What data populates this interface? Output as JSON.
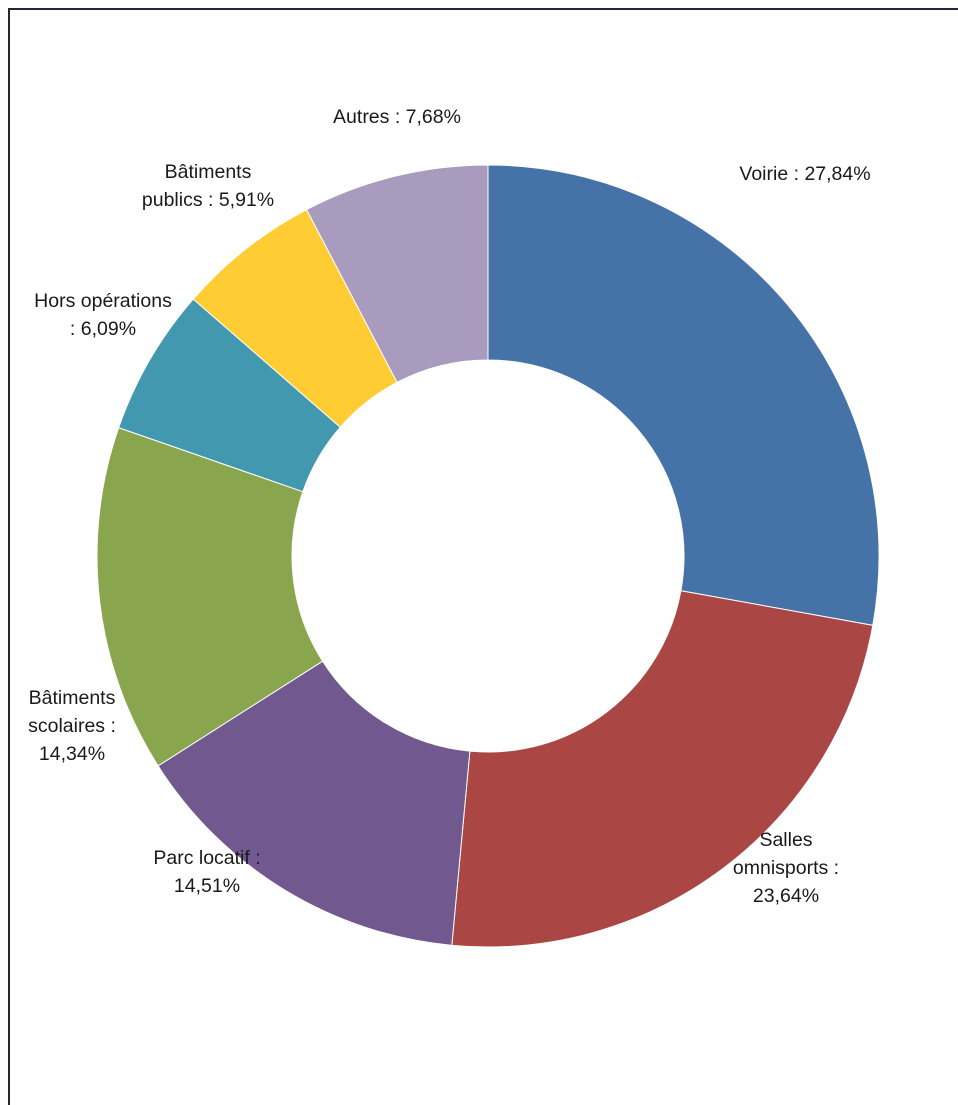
{
  "chart_data": {
    "type": "pie",
    "variant": "donut",
    "title": "",
    "slices": [
      {
        "label": "Voirie",
        "value": 27.84,
        "display": [
          "Voirie : 27,84%"
        ],
        "color": "#4572A7"
      },
      {
        "label": "Salles omnisports",
        "value": 23.64,
        "display": [
          "Salles",
          "omnisports :",
          "23,64%"
        ],
        "color": "#AA4643"
      },
      {
        "label": "Parc locatif",
        "value": 14.51,
        "display": [
          "Parc locatif :",
          "14,51%"
        ],
        "color": "#71588F"
      },
      {
        "label": "Bâtiments scolaires",
        "value": 14.34,
        "display": [
          "Bâtiments",
          "scolaires :",
          "14,34%"
        ],
        "color": "#89A54E"
      },
      {
        "label": "Hors opérations",
        "value": 6.09,
        "display": [
          "Hors opérations",
          ": 6,09%"
        ],
        "color": "#4198AF"
      },
      {
        "label": "Bâtiments publics",
        "value": 5.91,
        "display": [
          "Bâtiments",
          "publics : 5,91%"
        ],
        "color": "#FFCC33"
      },
      {
        "label": "Autres",
        "value": 7.68,
        "display": [
          "Autres : 7,68%"
        ],
        "color": "#A99BBD"
      }
    ],
    "start_angle_deg": 0,
    "direction": "clockwise",
    "legend": "none",
    "data_labels": "outside"
  }
}
